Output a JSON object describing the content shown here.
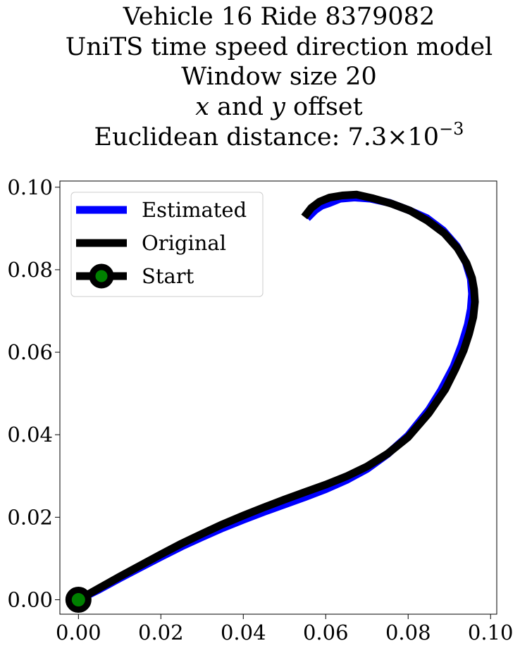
{
  "chart_data": {
    "type": "line",
    "title_lines": [
      "Vehicle 16 Ride 8379082",
      "UniTS time speed direction model",
      "Window size 20",
      "x and y offset",
      "Euclidean distance: 7.3×10−3"
    ],
    "xlabel": "",
    "ylabel": "",
    "xlim": [
      -0.0045,
      0.1015
    ],
    "ylim": [
      -0.0035,
      0.1015
    ],
    "xticks": [
      "0.00",
      "0.02",
      "0.04",
      "0.06",
      "0.08",
      "0.10"
    ],
    "yticks": [
      "0.00",
      "0.02",
      "0.04",
      "0.06",
      "0.08",
      "0.10"
    ],
    "grid": false,
    "legend_position": "top-left",
    "series": [
      {
        "name": "Estimated",
        "color": "#0000ff",
        "x": [
          0.0,
          0.005,
          0.01,
          0.015,
          0.02,
          0.025,
          0.03,
          0.035,
          0.04,
          0.045,
          0.05,
          0.055,
          0.06,
          0.065,
          0.07,
          0.075,
          0.08,
          0.085,
          0.088,
          0.091,
          0.093,
          0.0945,
          0.0952,
          0.0955,
          0.0952,
          0.094,
          0.0918,
          0.0885,
          0.0845,
          0.08,
          0.0755,
          0.071,
          0.067,
          0.0635,
          0.061,
          0.059,
          0.0575,
          0.0555
        ],
        "y": [
          0.0,
          0.0025,
          0.0052,
          0.0078,
          0.0104,
          0.0129,
          0.0152,
          0.0174,
          0.0194,
          0.0213,
          0.0231,
          0.0249,
          0.0268,
          0.029,
          0.0317,
          0.0353,
          0.0398,
          0.046,
          0.0508,
          0.0565,
          0.0618,
          0.0668,
          0.0705,
          0.0742,
          0.0778,
          0.0818,
          0.0857,
          0.0895,
          0.0925,
          0.0945,
          0.0962,
          0.0972,
          0.0975,
          0.0972,
          0.0962,
          0.0955,
          0.0945,
          0.0925
        ]
      },
      {
        "name": "Original",
        "color": "#000000",
        "x": [
          0.0,
          0.005,
          0.01,
          0.015,
          0.02,
          0.025,
          0.03,
          0.035,
          0.04,
          0.045,
          0.05,
          0.055,
          0.06,
          0.065,
          0.07,
          0.075,
          0.08,
          0.085,
          0.089,
          0.0915,
          0.0935,
          0.0948,
          0.0958,
          0.0962,
          0.096,
          0.0955,
          0.0942,
          0.092,
          0.0888,
          0.0848,
          0.0805,
          0.076,
          0.0715,
          0.0675,
          0.064,
          0.061,
          0.0585,
          0.0565,
          0.0548
        ],
        "y": [
          0.0,
          0.0028,
          0.0056,
          0.0083,
          0.011,
          0.0136,
          0.016,
          0.0183,
          0.0204,
          0.0224,
          0.0243,
          0.0261,
          0.0279,
          0.0299,
          0.0323,
          0.0354,
          0.0394,
          0.0452,
          0.051,
          0.056,
          0.0605,
          0.0645,
          0.0685,
          0.0722,
          0.0752,
          0.078,
          0.0815,
          0.0852,
          0.0888,
          0.0918,
          0.0943,
          0.096,
          0.0973,
          0.0982,
          0.098,
          0.0975,
          0.0965,
          0.095,
          0.0928
        ]
      }
    ],
    "start_point": {
      "name": "Start",
      "x": 0.0,
      "y": 0.0,
      "color": "#008000",
      "edge_color": "#000000"
    }
  }
}
